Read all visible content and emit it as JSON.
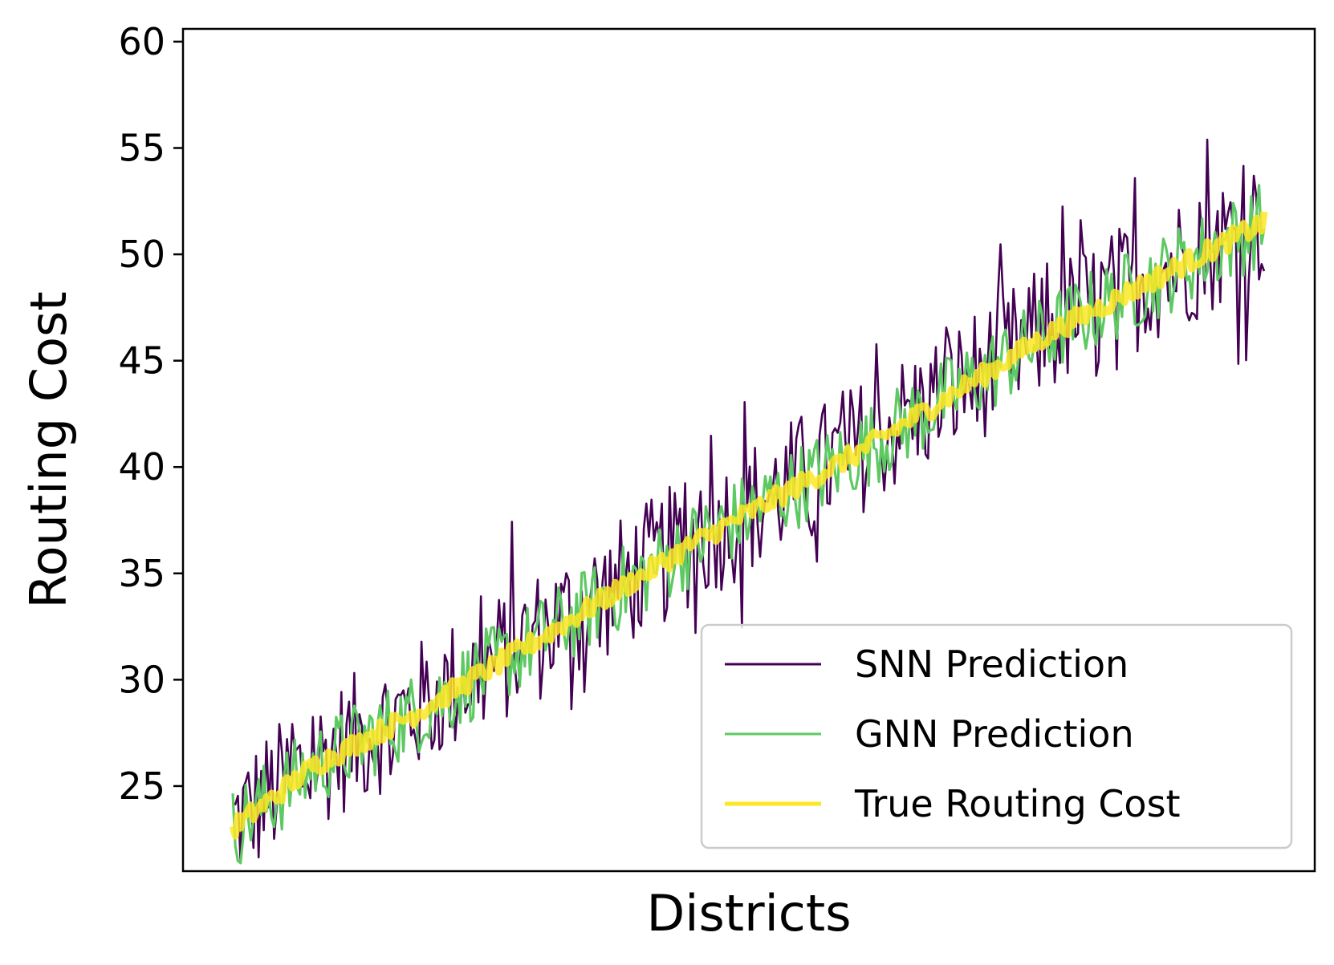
{
  "chart_data": {
    "type": "line",
    "xlabel": "Districts",
    "ylabel": "Routing Cost",
    "ylim": [
      21.0,
      60.6
    ],
    "yticks": [
      25,
      30,
      35,
      40,
      45,
      50,
      55,
      60
    ],
    "x_tick_labels": false,
    "grid": false,
    "legend_position": "lower-right",
    "n_points": 400,
    "series": [
      {
        "name": "SNN Prediction",
        "color": "#440154",
        "values": [],
        "noise_amplitude": 3.2
      },
      {
        "name": "GNN Prediction",
        "color": "#5ec962",
        "values": [],
        "noise_amplitude": 2.0
      },
      {
        "name": "True Routing Cost",
        "color": "#fde725",
        "values": [],
        "noise_amplitude": 0.5
      }
    ],
    "true_trend": {
      "x": [
        0,
        0.08,
        0.18,
        0.3,
        0.45,
        0.6,
        0.8,
        1.0
      ],
      "y": [
        23.0,
        26.0,
        28.5,
        32.0,
        36.5,
        40.5,
        46.5,
        51.5
      ]
    }
  }
}
